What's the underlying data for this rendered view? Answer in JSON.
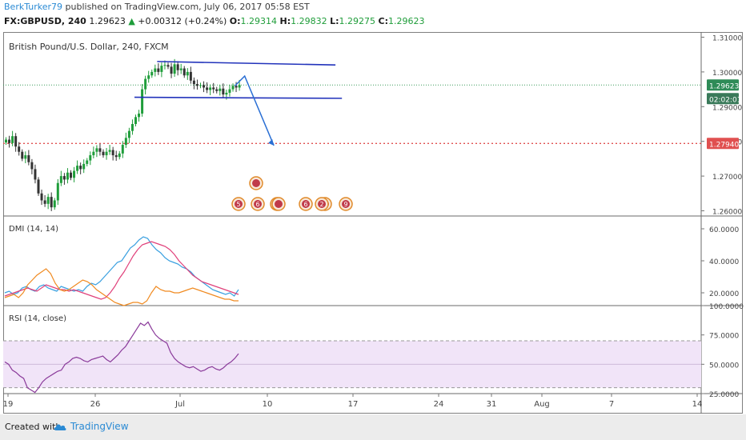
{
  "header": {
    "author": "BerkTurker79",
    "published": "published on TradingView.com, July 06, 2017 05:58 EST",
    "symbol": "FX:GBPUSD, 240",
    "last": "1.29623",
    "change": "+0.00312 (+0.24%)",
    "o_label": "O:",
    "o_value": "1.29314",
    "h_label": "H:",
    "h_value": "1.29832",
    "l_label": "L:",
    "l_value": "1.29275",
    "c_label": "C:",
    "c_value": "1.29623"
  },
  "footer": {
    "created_with": "Created with",
    "brand": "TradingView"
  },
  "colors": {
    "up": "#1f9d3a",
    "down": "#333333",
    "trend": "#2233bb",
    "projection": "#2a6fd4",
    "support": "#e05050",
    "dmi_plus": "#3aa0e0",
    "dmi_minus": "#e0407a",
    "adx": "#f08a20",
    "rsi": "#8a3a9a",
    "rsi_band": "#f1e4f8"
  },
  "chart_data": [
    {
      "type": "line",
      "subtype": "candlestick",
      "title": "British Pound/U.S. Dollar, 240, FXCM",
      "ylim": [
        1.2585,
        1.3115
      ],
      "yticks": [
        "1.31000",
        "1.30000",
        "1.29000",
        "1.28000",
        "1.27000",
        "1.26000"
      ],
      "xticks": [
        "19",
        "26",
        "Jul",
        "10",
        "17",
        "24",
        "31",
        "Aug",
        "7",
        "14"
      ],
      "price_tags": [
        {
          "value": "1.29623",
          "kind": "last"
        },
        {
          "value": "02:02:01",
          "kind": "countdown"
        },
        {
          "value": "1.27940",
          "kind": "support"
        }
      ],
      "support_level": 1.2794,
      "last_price": 1.29623,
      "candles_close": [
        1.2805,
        1.2795,
        1.2815,
        1.2785,
        1.277,
        1.275,
        1.276,
        1.274,
        1.272,
        1.269,
        1.265,
        1.263,
        1.262,
        1.264,
        1.261,
        1.263,
        1.268,
        1.27,
        1.269,
        1.271,
        1.2695,
        1.2715,
        1.273,
        1.272,
        1.2735,
        1.2745,
        1.276,
        1.277,
        1.278,
        1.277,
        1.276,
        1.277,
        1.2775,
        1.276,
        1.2755,
        1.2765,
        1.279,
        1.281,
        1.283,
        1.285,
        1.287,
        1.288,
        1.295,
        1.298,
        1.299,
        1.3,
        1.301,
        1.3,
        1.3018,
        1.302,
        1.3015,
        1.2995,
        1.3022,
        1.3005,
        1.301,
        1.299,
        1.3,
        1.2975,
        1.2965,
        1.296,
        1.2962,
        1.2955,
        1.2948,
        1.2955,
        1.295,
        1.2945,
        1.2952,
        1.2935,
        1.294,
        1.295,
        1.296,
        1.2955,
        1.2962
      ],
      "trendlines": [
        {
          "from": [
            47,
            1.303
          ],
          "to": [
            102,
            1.302
          ]
        },
        {
          "from": [
            40,
            1.2927
          ],
          "to": [
            104,
            1.2924
          ]
        }
      ],
      "projection": {
        "from": [
          71,
          1.296
        ],
        "via": [
          74,
          1.2988
        ],
        "to": [
          83,
          1.2788
        ]
      },
      "events": [
        {
          "label": "5",
          "row": 1
        },
        {
          "label": "6",
          "row": 1
        },
        {
          "label": "",
          "row": 1
        },
        {
          "label": "",
          "row": 2
        },
        {
          "label": "",
          "row": 1
        },
        {
          "label": "6",
          "row": 1
        },
        {
          "label": "",
          "row": 1
        },
        {
          "label": "2",
          "row": 1
        },
        {
          "label": "9",
          "row": 1
        }
      ]
    },
    {
      "type": "line",
      "title": "DMI (14, 14)",
      "ylim": [
        12,
        68
      ],
      "yticks": [
        "60.0000",
        "40.0000",
        "20.0000"
      ],
      "series": [
        {
          "values": [
            20,
            21,
            19,
            20,
            23,
            24,
            22,
            21,
            24,
            25,
            23,
            22,
            21,
            24,
            23,
            22,
            21,
            22,
            21,
            24,
            26,
            25,
            27,
            30,
            33,
            36,
            39,
            40,
            44,
            48,
            50,
            53,
            55,
            54,
            50,
            47,
            45,
            42,
            40,
            39,
            38,
            36,
            35,
            33,
            30,
            28,
            26,
            24,
            22,
            21,
            20,
            19,
            20,
            18,
            22
          ]
        },
        {
          "values": [
            18,
            19,
            20,
            21,
            22,
            23,
            22,
            21,
            23,
            25,
            24,
            23,
            22,
            22,
            21,
            22,
            21,
            20,
            19,
            18,
            17,
            16,
            17,
            20,
            24,
            29,
            33,
            38,
            43,
            47,
            50,
            51,
            52,
            51,
            50,
            49,
            47,
            44,
            40,
            37,
            34,
            31,
            29,
            27,
            26,
            25,
            24,
            23,
            22,
            21,
            20,
            19
          ]
        },
        {
          "values": [
            17,
            18,
            19,
            17,
            20,
            25,
            28,
            31,
            33,
            35,
            32,
            26,
            22,
            21,
            22,
            24,
            26,
            28,
            27,
            25,
            22,
            20,
            18,
            16,
            14,
            13,
            12,
            13,
            14,
            14,
            13,
            15,
            20,
            24,
            22,
            21,
            21,
            20,
            20,
            21,
            22,
            23,
            22,
            21,
            20,
            19,
            18,
            17,
            16,
            16,
            15,
            15
          ]
        }
      ]
    },
    {
      "type": "line",
      "title": "RSI (14, close)",
      "ylim": [
        25,
        100
      ],
      "yticks": [
        "100.0000",
        "75.0000",
        "50.0000",
        "25.0000"
      ],
      "band": [
        30,
        70
      ],
      "series": [
        {
          "values": [
            52,
            50,
            45,
            43,
            40,
            38,
            30,
            28,
            26,
            30,
            35,
            38,
            40,
            42,
            44,
            45,
            50,
            52,
            55,
            56,
            55,
            53,
            52,
            54,
            55,
            56,
            57,
            54,
            52,
            55,
            58,
            62,
            65,
            70,
            75,
            80,
            85,
            83,
            86,
            80,
            75,
            72,
            70,
            68,
            60,
            55,
            52,
            50,
            48,
            47,
            48,
            46,
            44,
            45,
            47,
            48,
            46,
            45,
            47,
            50,
            52,
            55,
            59
          ]
        }
      ]
    }
  ]
}
